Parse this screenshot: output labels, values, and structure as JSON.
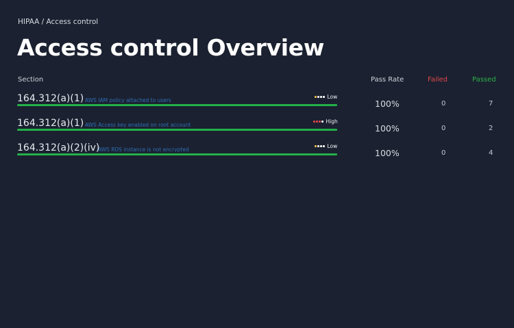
{
  "breadcrumb": "HIPAA / Access control",
  "title": "Access control Overview",
  "columns": {
    "section": "Section",
    "pass_rate": "Pass Rate",
    "failed": "Failed",
    "passed": "Passed"
  },
  "colors": {
    "failed_header": "#e0474a",
    "passed_header": "#2db24a",
    "bar": "#23b14a",
    "link": "#2f6fb8",
    "sev_low_dot": "#f2c14a",
    "sev_high_dot": "#e4484e",
    "sev_trail_dot": "#ffffff"
  },
  "rows": [
    {
      "code": "164.312(a)(1)",
      "description": "AWS IAM policy attached to users",
      "severity": "Low",
      "severity_dot_icon": "severity-dots-icon",
      "pass_rate_value": 1.0,
      "pass_rate": "100%",
      "failed": "0",
      "passed": "7"
    },
    {
      "code": "164.312(a)(1)",
      "description": "AWS Access key enabled on root account",
      "severity": "High",
      "severity_dot_icon": "severity-dots-icon",
      "pass_rate_value": 1.0,
      "pass_rate": "100%",
      "failed": "0",
      "passed": "2"
    },
    {
      "code": "164.312(a)(2)(iv)",
      "description": "AWS RDS instance is not encrypted",
      "severity": "Low",
      "severity_dot_icon": "severity-dots-icon",
      "pass_rate_value": 1.0,
      "pass_rate": "100%",
      "failed": "0",
      "passed": "4"
    }
  ]
}
